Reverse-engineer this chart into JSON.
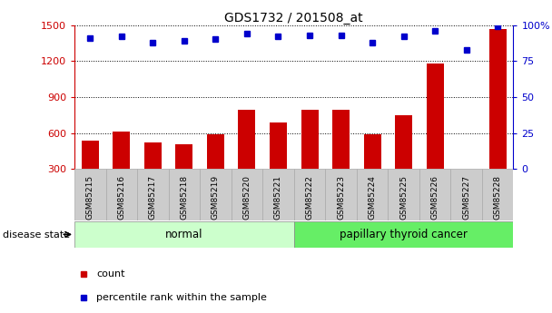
{
  "title": "GDS1732 / 201508_at",
  "samples": [
    "GSM85215",
    "GSM85216",
    "GSM85217",
    "GSM85218",
    "GSM85219",
    "GSM85220",
    "GSM85221",
    "GSM85222",
    "GSM85223",
    "GSM85224",
    "GSM85225",
    "GSM85226",
    "GSM85227",
    "GSM85228"
  ],
  "counts": [
    540,
    610,
    520,
    505,
    590,
    790,
    690,
    790,
    790,
    590,
    750,
    1180,
    300,
    1470
  ],
  "percentiles": [
    91,
    92,
    88,
    89,
    90,
    94,
    92,
    93,
    93,
    88,
    92,
    96,
    83,
    99
  ],
  "disease_states": [
    "normal",
    "normal",
    "normal",
    "normal",
    "normal",
    "normal",
    "normal",
    "papillary thyroid cancer",
    "papillary thyroid cancer",
    "papillary thyroid cancer",
    "papillary thyroid cancer",
    "papillary thyroid cancer",
    "papillary thyroid cancer",
    "papillary thyroid cancer"
  ],
  "normal_color": "#ccffcc",
  "cancer_color": "#66ee66",
  "bar_color": "#cc0000",
  "dot_color": "#0000cc",
  "ylim_left": [
    300,
    1500
  ],
  "ylim_right": [
    0,
    100
  ],
  "yticks_left": [
    300,
    600,
    900,
    1200,
    1500
  ],
  "yticks_right": [
    0,
    25,
    50,
    75,
    100
  ],
  "grid_color": "#000000",
  "background_color": "#ffffff",
  "plot_bg_color": "#ffffff",
  "xtick_bg_color": "#cccccc"
}
